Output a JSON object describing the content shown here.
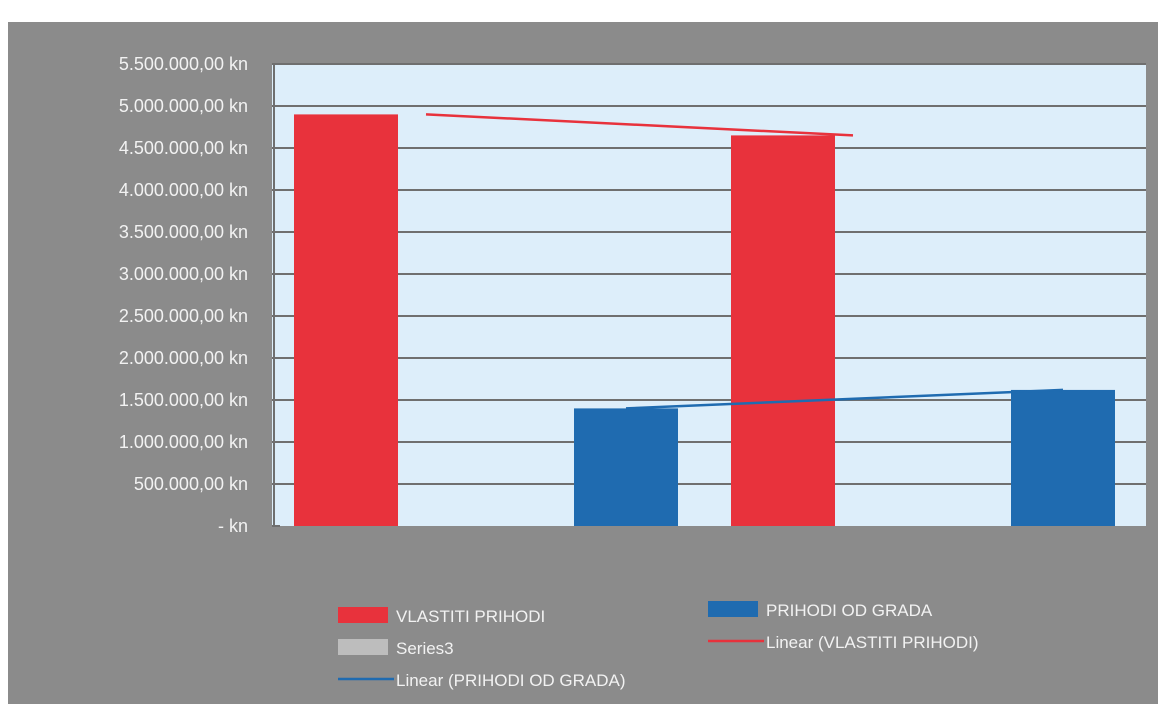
{
  "chart_data": {
    "type": "bar",
    "categories": [
      "",
      ""
    ],
    "series": [
      {
        "name": "VLASTITI PRIHODI",
        "color": "#e8323c",
        "values": [
          4900000,
          4650000
        ]
      },
      {
        "name": "Series3",
        "color": "#bdbdbd",
        "values": [
          0,
          0
        ]
      },
      {
        "name": "PRIHODI OD GRADA",
        "color": "#1f6bb0",
        "values": [
          1400000,
          1620000
        ]
      }
    ],
    "trendlines": [
      {
        "name": "Linear (VLASTITI PRIHODI)",
        "color": "#e8323c",
        "values": [
          4900000,
          4650000
        ]
      },
      {
        "name": "Linear (PRIHODI OD GRADA)",
        "color": "#1f6bb0",
        "values": [
          1400000,
          1620000
        ]
      }
    ],
    "ylim": [
      0,
      5500000
    ],
    "yticks": [
      "-   kn",
      "500.000,00 kn",
      "1.000.000,00 kn",
      "1.500.000,00 kn",
      "2.000.000,00 kn",
      "2.500.000,00 kn",
      "3.000.000,00 kn",
      "3.500.000,00 kn",
      "4.000.000,00 kn",
      "4.500.000,00 kn",
      "5.000.000,00 kn",
      "5.500.000,00 kn"
    ],
    "grid": true,
    "legend_position": "bottom",
    "plot_background": "#ddeefa",
    "frame_background": "#8b8b8b"
  }
}
